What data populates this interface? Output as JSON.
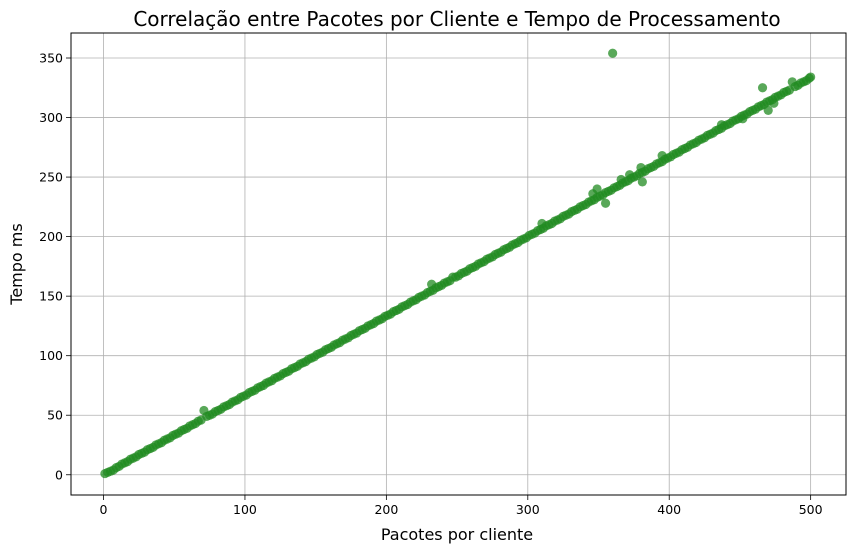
{
  "chart_data": {
    "type": "scatter",
    "title": "Correlação entre Pacotes por Cliente e Tempo de Processamento",
    "xlabel": "Pacotes por cliente",
    "ylabel": "Tempo ms",
    "xlim": [
      -23,
      525
    ],
    "ylim": [
      -17,
      371
    ],
    "x_ticks": [
      0,
      100,
      200,
      300,
      400,
      500
    ],
    "y_ticks": [
      0,
      50,
      100,
      150,
      200,
      250,
      300,
      350
    ],
    "grid": true,
    "marker_color": "#228B22",
    "marker_alpha": 0.75,
    "trend": "y ≈ 0.67 · x",
    "outliers": [
      {
        "x": 360,
        "y": 354
      },
      {
        "x": 71,
        "y": 54
      },
      {
        "x": 232,
        "y": 160
      },
      {
        "x": 247,
        "y": 166
      },
      {
        "x": 380,
        "y": 258
      },
      {
        "x": 466,
        "y": 325
      },
      {
        "x": 487,
        "y": 330
      }
    ],
    "points": [
      [
        1,
        1
      ],
      [
        3,
        2
      ],
      [
        5,
        3
      ],
      [
        7,
        4
      ],
      [
        9,
        6
      ],
      [
        11,
        7
      ],
      [
        13,
        9
      ],
      [
        15,
        10
      ],
      [
        17,
        11
      ],
      [
        19,
        13
      ],
      [
        21,
        14
      ],
      [
        23,
        15
      ],
      [
        25,
        17
      ],
      [
        27,
        18
      ],
      [
        29,
        19
      ],
      [
        31,
        21
      ],
      [
        33,
        22
      ],
      [
        35,
        23
      ],
      [
        37,
        25
      ],
      [
        39,
        26
      ],
      [
        41,
        27
      ],
      [
        43,
        29
      ],
      [
        45,
        30
      ],
      [
        47,
        31
      ],
      [
        49,
        33
      ],
      [
        51,
        34
      ],
      [
        53,
        35
      ],
      [
        55,
        37
      ],
      [
        57,
        38
      ],
      [
        59,
        39
      ],
      [
        61,
        41
      ],
      [
        63,
        42
      ],
      [
        65,
        43
      ],
      [
        67,
        45
      ],
      [
        69,
        46
      ],
      [
        73,
        49
      ],
      [
        75,
        50
      ],
      [
        77,
        51
      ],
      [
        79,
        53
      ],
      [
        81,
        54
      ],
      [
        83,
        55
      ],
      [
        85,
        57
      ],
      [
        87,
        58
      ],
      [
        89,
        59
      ],
      [
        91,
        61
      ],
      [
        93,
        62
      ],
      [
        95,
        63
      ],
      [
        97,
        65
      ],
      [
        99,
        66
      ],
      [
        101,
        67
      ],
      [
        103,
        69
      ],
      [
        105,
        70
      ],
      [
        107,
        71
      ],
      [
        109,
        73
      ],
      [
        111,
        74
      ],
      [
        113,
        75
      ],
      [
        115,
        77
      ],
      [
        117,
        78
      ],
      [
        119,
        79
      ],
      [
        121,
        81
      ],
      [
        123,
        82
      ],
      [
        125,
        83
      ],
      [
        127,
        85
      ],
      [
        129,
        86
      ],
      [
        131,
        87
      ],
      [
        133,
        89
      ],
      [
        135,
        90
      ],
      [
        137,
        91
      ],
      [
        139,
        93
      ],
      [
        141,
        94
      ],
      [
        143,
        95
      ],
      [
        145,
        97
      ],
      [
        147,
        98
      ],
      [
        149,
        99
      ],
      [
        151,
        101
      ],
      [
        153,
        102
      ],
      [
        155,
        103
      ],
      [
        157,
        105
      ],
      [
        159,
        106
      ],
      [
        161,
        107
      ],
      [
        163,
        109
      ],
      [
        165,
        110
      ],
      [
        167,
        111
      ],
      [
        169,
        113
      ],
      [
        171,
        114
      ],
      [
        173,
        115
      ],
      [
        175,
        117
      ],
      [
        177,
        118
      ],
      [
        179,
        119
      ],
      [
        181,
        121
      ],
      [
        183,
        122
      ],
      [
        185,
        123
      ],
      [
        187,
        125
      ],
      [
        189,
        126
      ],
      [
        191,
        127
      ],
      [
        193,
        129
      ],
      [
        195,
        130
      ],
      [
        197,
        131
      ],
      [
        199,
        133
      ],
      [
        201,
        134
      ],
      [
        203,
        135
      ],
      [
        205,
        137
      ],
      [
        207,
        138
      ],
      [
        209,
        139
      ],
      [
        211,
        141
      ],
      [
        213,
        142
      ],
      [
        215,
        143
      ],
      [
        217,
        145
      ],
      [
        219,
        146
      ],
      [
        221,
        147
      ],
      [
        223,
        149
      ],
      [
        225,
        150
      ],
      [
        227,
        151
      ],
      [
        229,
        153
      ],
      [
        231,
        154
      ],
      [
        233,
        155
      ],
      [
        235,
        157
      ],
      [
        237,
        158
      ],
      [
        239,
        159
      ],
      [
        241,
        161
      ],
      [
        243,
        162
      ],
      [
        245,
        163
      ],
      [
        249,
        166
      ],
      [
        251,
        167
      ],
      [
        253,
        169
      ],
      [
        255,
        170
      ],
      [
        257,
        171
      ],
      [
        259,
        173
      ],
      [
        261,
        174
      ],
      [
        263,
        175
      ],
      [
        265,
        177
      ],
      [
        267,
        178
      ],
      [
        269,
        179
      ],
      [
        271,
        181
      ],
      [
        273,
        182
      ],
      [
        275,
        183
      ],
      [
        277,
        185
      ],
      [
        279,
        186
      ],
      [
        281,
        187
      ],
      [
        283,
        189
      ],
      [
        285,
        190
      ],
      [
        287,
        191
      ],
      [
        289,
        193
      ],
      [
        291,
        194
      ],
      [
        293,
        195
      ],
      [
        295,
        197
      ],
      [
        297,
        198
      ],
      [
        299,
        199
      ],
      [
        301,
        201
      ],
      [
        303,
        202
      ],
      [
        305,
        203
      ],
      [
        307,
        205
      ],
      [
        309,
        206
      ],
      [
        311,
        207
      ],
      [
        313,
        209
      ],
      [
        315,
        210
      ],
      [
        317,
        211
      ],
      [
        319,
        213
      ],
      [
        321,
        214
      ],
      [
        323,
        215
      ],
      [
        325,
        217
      ],
      [
        327,
        218
      ],
      [
        329,
        219
      ],
      [
        331,
        221
      ],
      [
        333,
        222
      ],
      [
        335,
        223
      ],
      [
        337,
        225
      ],
      [
        339,
        226
      ],
      [
        341,
        227
      ],
      [
        343,
        229
      ],
      [
        345,
        230
      ],
      [
        347,
        231
      ],
      [
        349,
        233
      ],
      [
        351,
        234
      ],
      [
        353,
        235
      ],
      [
        355,
        237
      ],
      [
        357,
        238
      ],
      [
        359,
        239
      ],
      [
        361,
        241
      ],
      [
        363,
        242
      ],
      [
        365,
        243
      ],
      [
        367,
        245
      ],
      [
        369,
        246
      ],
      [
        371,
        247
      ],
      [
        373,
        249
      ],
      [
        375,
        250
      ],
      [
        377,
        251
      ],
      [
        379,
        253
      ],
      [
        381,
        254
      ],
      [
        383,
        255
      ],
      [
        385,
        257
      ],
      [
        387,
        258
      ],
      [
        389,
        259
      ],
      [
        391,
        261
      ],
      [
        393,
        262
      ],
      [
        395,
        263
      ],
      [
        397,
        265
      ],
      [
        399,
        266
      ],
      [
        401,
        267
      ],
      [
        403,
        269
      ],
      [
        405,
        270
      ],
      [
        407,
        271
      ],
      [
        409,
        273
      ],
      [
        411,
        274
      ],
      [
        413,
        275
      ],
      [
        415,
        277
      ],
      [
        417,
        278
      ],
      [
        419,
        279
      ],
      [
        421,
        281
      ],
      [
        423,
        282
      ],
      [
        425,
        283
      ],
      [
        427,
        285
      ],
      [
        429,
        286
      ],
      [
        431,
        287
      ],
      [
        433,
        289
      ],
      [
        435,
        290
      ],
      [
        437,
        291
      ],
      [
        439,
        293
      ],
      [
        441,
        294
      ],
      [
        443,
        295
      ],
      [
        445,
        297
      ],
      [
        447,
        298
      ],
      [
        449,
        299
      ],
      [
        451,
        301
      ],
      [
        453,
        302
      ],
      [
        455,
        303
      ],
      [
        457,
        305
      ],
      [
        459,
        306
      ],
      [
        461,
        307
      ],
      [
        463,
        309
      ],
      [
        465,
        310
      ],
      [
        467,
        311
      ],
      [
        469,
        313
      ],
      [
        471,
        314
      ],
      [
        473,
        315
      ],
      [
        475,
        317
      ],
      [
        477,
        318
      ],
      [
        479,
        319
      ],
      [
        481,
        321
      ],
      [
        483,
        322
      ],
      [
        485,
        323
      ],
      [
        489,
        326
      ],
      [
        491,
        327
      ],
      [
        493,
        329
      ],
      [
        495,
        330
      ],
      [
        497,
        331
      ],
      [
        499,
        333
      ],
      [
        500,
        334
      ],
      [
        474,
        312
      ],
      [
        470,
        306
      ],
      [
        372,
        252
      ],
      [
        366,
        248
      ],
      [
        355,
        228
      ],
      [
        346,
        236
      ],
      [
        349,
        240
      ],
      [
        381,
        246
      ],
      [
        452,
        299
      ],
      [
        437,
        294
      ],
      [
        395,
        268
      ],
      [
        310,
        211
      ]
    ]
  }
}
